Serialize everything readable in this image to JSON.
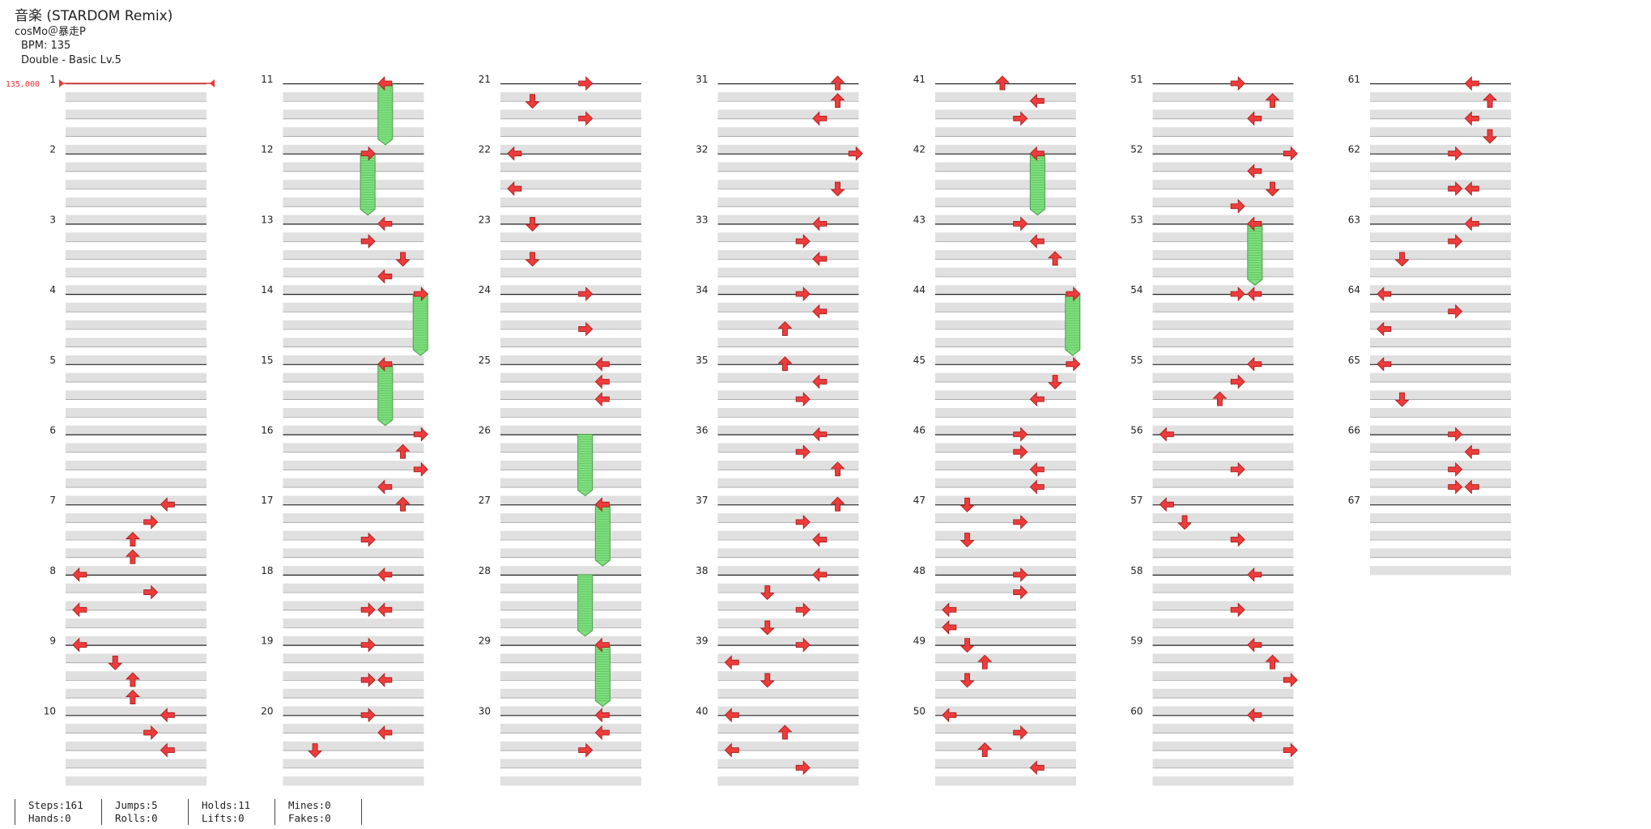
{
  "song": {
    "title": "音楽 (STARDOM Remix)",
    "artist": "cosMo＠暴走P",
    "bpm_label": "BPM: 135",
    "difficulty_label": "Double - Basic Lv.5",
    "bpm_marker": "135.000"
  },
  "measure_numbers": [
    "1",
    "2",
    "3",
    "4",
    "5",
    "6",
    "7",
    "8",
    "9",
    "10",
    "11",
    "12",
    "13",
    "14",
    "15",
    "16",
    "17",
    "18",
    "19",
    "20",
    "21",
    "22",
    "23",
    "24",
    "25",
    "26",
    "27",
    "28",
    "29",
    "30",
    "31",
    "32",
    "33",
    "34",
    "35",
    "36",
    "37",
    "38",
    "39",
    "40",
    "41",
    "42",
    "43",
    "44",
    "45",
    "46",
    "47",
    "48",
    "49",
    "50",
    "51",
    "52",
    "53",
    "54",
    "55",
    "56",
    "57",
    "58",
    "59",
    "60",
    "61",
    "62",
    "63",
    "64",
    "65",
    "66",
    "67"
  ],
  "colors": {
    "arrow": "#ee3b3b",
    "hold": "#7ee07e",
    "band": "#e0e0e0"
  },
  "notes": [
    {
      "m": 7,
      "b": 0,
      "l": 5,
      "d": "left"
    },
    {
      "m": 7,
      "b": 1,
      "l": 4,
      "d": "right"
    },
    {
      "m": 7,
      "b": 2,
      "l": 3,
      "d": "up"
    },
    {
      "m": 7,
      "b": 3,
      "l": 3,
      "d": "up"
    },
    {
      "m": 8,
      "b": 0,
      "l": 0,
      "d": "left"
    },
    {
      "m": 8,
      "b": 1,
      "l": 4,
      "d": "right"
    },
    {
      "m": 8,
      "b": 2,
      "l": 0,
      "d": "left"
    },
    {
      "m": 9,
      "b": 0,
      "l": 0,
      "d": "left"
    },
    {
      "m": 9,
      "b": 1,
      "l": 2,
      "d": "down"
    },
    {
      "m": 9,
      "b": 2,
      "l": 3,
      "d": "up"
    },
    {
      "m": 9,
      "b": 3,
      "l": 3,
      "d": "up"
    },
    {
      "m": 10,
      "b": 0,
      "l": 5,
      "d": "left"
    },
    {
      "m": 10,
      "b": 1,
      "l": 4,
      "d": "right"
    },
    {
      "m": 10,
      "b": 2,
      "l": 5,
      "d": "left"
    },
    {
      "m": 11,
      "b": 0,
      "l": 5,
      "d": "left"
    },
    {
      "m": 12,
      "b": 0,
      "l": 4,
      "d": "right"
    },
    {
      "m": 13,
      "b": 0,
      "l": 5,
      "d": "left"
    },
    {
      "m": 13,
      "b": 1,
      "l": 4,
      "d": "right"
    },
    {
      "m": 13,
      "b": 2,
      "l": 6,
      "d": "down"
    },
    {
      "m": 13,
      "b": 3,
      "l": 5,
      "d": "left"
    },
    {
      "m": 14,
      "b": 0,
      "l": 7,
      "d": "right"
    },
    {
      "m": 15,
      "b": 0,
      "l": 5,
      "d": "left"
    },
    {
      "m": 16,
      "b": 0,
      "l": 7,
      "d": "right"
    },
    {
      "m": 16,
      "b": 1,
      "l": 6,
      "d": "up"
    },
    {
      "m": 16,
      "b": 2,
      "l": 7,
      "d": "right"
    },
    {
      "m": 16,
      "b": 3,
      "l": 5,
      "d": "left"
    },
    {
      "m": 17,
      "b": 0,
      "l": 6,
      "d": "up"
    },
    {
      "m": 17,
      "b": 2,
      "l": 4,
      "d": "right"
    },
    {
      "m": 18,
      "b": 0,
      "l": 5,
      "d": "left"
    },
    {
      "m": 18,
      "b": 2,
      "l": 4,
      "d": "right"
    },
    {
      "m": 18,
      "b": 2,
      "l": 5,
      "d": "left"
    },
    {
      "m": 19,
      "b": 0,
      "l": 4,
      "d": "right"
    },
    {
      "m": 19,
      "b": 2,
      "l": 4,
      "d": "right"
    },
    {
      "m": 19,
      "b": 2,
      "l": 5,
      "d": "left"
    },
    {
      "m": 20,
      "b": 0,
      "l": 4,
      "d": "right"
    },
    {
      "m": 20,
      "b": 1,
      "l": 5,
      "d": "left"
    },
    {
      "m": 20,
      "b": 2,
      "l": 1,
      "d": "down"
    },
    {
      "m": 21,
      "b": 0,
      "l": 4,
      "d": "right"
    },
    {
      "m": 21,
      "b": 1,
      "l": 1,
      "d": "down"
    },
    {
      "m": 21,
      "b": 2,
      "l": 4,
      "d": "right"
    },
    {
      "m": 22,
      "b": 0,
      "l": 0,
      "d": "left"
    },
    {
      "m": 22,
      "b": 2,
      "l": 0,
      "d": "left"
    },
    {
      "m": 23,
      "b": 0,
      "l": 1,
      "d": "down"
    },
    {
      "m": 23,
      "b": 2,
      "l": 1,
      "d": "down"
    },
    {
      "m": 24,
      "b": 0,
      "l": 4,
      "d": "right"
    },
    {
      "m": 24,
      "b": 2,
      "l": 4,
      "d": "right"
    },
    {
      "m": 25,
      "b": 0,
      "l": 5,
      "d": "left"
    },
    {
      "m": 25,
      "b": 1,
      "l": 5,
      "d": "left"
    },
    {
      "m": 25,
      "b": 2,
      "l": 5,
      "d": "left"
    },
    {
      "m": 27,
      "b": 0,
      "l": 5,
      "d": "left"
    },
    {
      "m": 29,
      "b": 0,
      "l": 5,
      "d": "left"
    },
    {
      "m": 30,
      "b": 0,
      "l": 5,
      "d": "left"
    },
    {
      "m": 30,
      "b": 1,
      "l": 5,
      "d": "left"
    },
    {
      "m": 30,
      "b": 2,
      "l": 4,
      "d": "right"
    },
    {
      "m": 31,
      "b": 0,
      "l": 6,
      "d": "up"
    },
    {
      "m": 31,
      "b": 1,
      "l": 6,
      "d": "up"
    },
    {
      "m": 31,
      "b": 2,
      "l": 5,
      "d": "left"
    },
    {
      "m": 32,
      "b": 0,
      "l": 7,
      "d": "right"
    },
    {
      "m": 32,
      "b": 2,
      "l": 6,
      "d": "down"
    },
    {
      "m": 33,
      "b": 0,
      "l": 5,
      "d": "left"
    },
    {
      "m": 33,
      "b": 1,
      "l": 4,
      "d": "right"
    },
    {
      "m": 33,
      "b": 2,
      "l": 5,
      "d": "left"
    },
    {
      "m": 34,
      "b": 0,
      "l": 4,
      "d": "right"
    },
    {
      "m": 34,
      "b": 1,
      "l": 5,
      "d": "left"
    },
    {
      "m": 34,
      "b": 2,
      "l": 3,
      "d": "up"
    },
    {
      "m": 35,
      "b": 0,
      "l": 3,
      "d": "up"
    },
    {
      "m": 35,
      "b": 1,
      "l": 5,
      "d": "left"
    },
    {
      "m": 35,
      "b": 2,
      "l": 4,
      "d": "right"
    },
    {
      "m": 36,
      "b": 0,
      "l": 5,
      "d": "left"
    },
    {
      "m": 36,
      "b": 1,
      "l": 4,
      "d": "right"
    },
    {
      "m": 36,
      "b": 2,
      "l": 6,
      "d": "up"
    },
    {
      "m": 37,
      "b": 0,
      "l": 6,
      "d": "up"
    },
    {
      "m": 37,
      "b": 1,
      "l": 4,
      "d": "right"
    },
    {
      "m": 37,
      "b": 2,
      "l": 5,
      "d": "left"
    },
    {
      "m": 38,
      "b": 0,
      "l": 5,
      "d": "left"
    },
    {
      "m": 38,
      "b": 1,
      "l": 2,
      "d": "down"
    },
    {
      "m": 38,
      "b": 2,
      "l": 4,
      "d": "right"
    },
    {
      "m": 38,
      "b": 3,
      "l": 2,
      "d": "down"
    },
    {
      "m": 39,
      "b": 0,
      "l": 4,
      "d": "right"
    },
    {
      "m": 39,
      "b": 1,
      "l": 0,
      "d": "left"
    },
    {
      "m": 39,
      "b": 2,
      "l": 2,
      "d": "down"
    },
    {
      "m": 40,
      "b": 0,
      "l": 0,
      "d": "left"
    },
    {
      "m": 40,
      "b": 1,
      "l": 3,
      "d": "up"
    },
    {
      "m": 40,
      "b": 2,
      "l": 0,
      "d": "left"
    },
    {
      "m": 40,
      "b": 3,
      "l": 4,
      "d": "right"
    },
    {
      "m": 41,
      "b": 0,
      "l": 3,
      "d": "up"
    },
    {
      "m": 41,
      "b": 1,
      "l": 5,
      "d": "left"
    },
    {
      "m": 41,
      "b": 2,
      "l": 4,
      "d": "right"
    },
    {
      "m": 42,
      "b": 0,
      "l": 5,
      "d": "left"
    },
    {
      "m": 43,
      "b": 0,
      "l": 4,
      "d": "right"
    },
    {
      "m": 43,
      "b": 1,
      "l": 5,
      "d": "left"
    },
    {
      "m": 43,
      "b": 2,
      "l": 6,
      "d": "up"
    },
    {
      "m": 44,
      "b": 0,
      "l": 7,
      "d": "right"
    },
    {
      "m": 45,
      "b": 0,
      "l": 7,
      "d": "right"
    },
    {
      "m": 45,
      "b": 1,
      "l": 6,
      "d": "down"
    },
    {
      "m": 45,
      "b": 2,
      "l": 5,
      "d": "left"
    },
    {
      "m": 46,
      "b": 0,
      "l": 4,
      "d": "right"
    },
    {
      "m": 46,
      "b": 1,
      "l": 4,
      "d": "right"
    },
    {
      "m": 46,
      "b": 2,
      "l": 5,
      "d": "left"
    },
    {
      "m": 46,
      "b": 3,
      "l": 5,
      "d": "left"
    },
    {
      "m": 47,
      "b": 0,
      "l": 1,
      "d": "down"
    },
    {
      "m": 47,
      "b": 1,
      "l": 4,
      "d": "right"
    },
    {
      "m": 47,
      "b": 2,
      "l": 1,
      "d": "down"
    },
    {
      "m": 48,
      "b": 0,
      "l": 4,
      "d": "right"
    },
    {
      "m": 48,
      "b": 1,
      "l": 4,
      "d": "right"
    },
    {
      "m": 48,
      "b": 2,
      "l": 0,
      "d": "left"
    },
    {
      "m": 48,
      "b": 3,
      "l": 0,
      "d": "left"
    },
    {
      "m": 49,
      "b": 0,
      "l": 1,
      "d": "down"
    },
    {
      "m": 49,
      "b": 1,
      "l": 2,
      "d": "up"
    },
    {
      "m": 49,
      "b": 2,
      "l": 1,
      "d": "down"
    },
    {
      "m": 50,
      "b": 0,
      "l": 0,
      "d": "left"
    },
    {
      "m": 50,
      "b": 1,
      "l": 4,
      "d": "right"
    },
    {
      "m": 50,
      "b": 2,
      "l": 2,
      "d": "up"
    },
    {
      "m": 50,
      "b": 3,
      "l": 5,
      "d": "left"
    },
    {
      "m": 51,
      "b": 0,
      "l": 4,
      "d": "right"
    },
    {
      "m": 51,
      "b": 1,
      "l": 6,
      "d": "up"
    },
    {
      "m": 51,
      "b": 2,
      "l": 5,
      "d": "left"
    },
    {
      "m": 52,
      "b": 0,
      "l": 7,
      "d": "right"
    },
    {
      "m": 52,
      "b": 1,
      "l": 5,
      "d": "left"
    },
    {
      "m": 52,
      "b": 2,
      "l": 6,
      "d": "down"
    },
    {
      "m": 52,
      "b": 3,
      "l": 4,
      "d": "right"
    },
    {
      "m": 53,
      "b": 0,
      "l": 5,
      "d": "left"
    },
    {
      "m": 54,
      "b": 0,
      "l": 4,
      "d": "right"
    },
    {
      "m": 54,
      "b": 0,
      "l": 5,
      "d": "left"
    },
    {
      "m": 55,
      "b": 0,
      "l": 5,
      "d": "left"
    },
    {
      "m": 55,
      "b": 1,
      "l": 4,
      "d": "right"
    },
    {
      "m": 55,
      "b": 2,
      "l": 3,
      "d": "up"
    },
    {
      "m": 56,
      "b": 0,
      "l": 0,
      "d": "left"
    },
    {
      "m": 56,
      "b": 2,
      "l": 4,
      "d": "right"
    },
    {
      "m": 57,
      "b": 0,
      "l": 0,
      "d": "left"
    },
    {
      "m": 57,
      "b": 1,
      "l": 1,
      "d": "down"
    },
    {
      "m": 57,
      "b": 2,
      "l": 4,
      "d": "right"
    },
    {
      "m": 58,
      "b": 0,
      "l": 5,
      "d": "left"
    },
    {
      "m": 58,
      "b": 2,
      "l": 4,
      "d": "right"
    },
    {
      "m": 59,
      "b": 0,
      "l": 5,
      "d": "left"
    },
    {
      "m": 59,
      "b": 1,
      "l": 6,
      "d": "up"
    },
    {
      "m": 59,
      "b": 2,
      "l": 7,
      "d": "right"
    },
    {
      "m": 60,
      "b": 0,
      "l": 5,
      "d": "left"
    },
    {
      "m": 60,
      "b": 2,
      "l": 7,
      "d": "right"
    },
    {
      "m": 61,
      "b": 0,
      "l": 5,
      "d": "left"
    },
    {
      "m": 61,
      "b": 1,
      "l": 6,
      "d": "up"
    },
    {
      "m": 61,
      "b": 2,
      "l": 5,
      "d": "left"
    },
    {
      "m": 61,
      "b": 3,
      "l": 6,
      "d": "down"
    },
    {
      "m": 62,
      "b": 0,
      "l": 4,
      "d": "right"
    },
    {
      "m": 62,
      "b": 2,
      "l": 4,
      "d": "right"
    },
    {
      "m": 62,
      "b": 2,
      "l": 5,
      "d": "left"
    },
    {
      "m": 63,
      "b": 0,
      "l": 5,
      "d": "left"
    },
    {
      "m": 63,
      "b": 1,
      "l": 4,
      "d": "right"
    },
    {
      "m": 63,
      "b": 2,
      "l": 1,
      "d": "down"
    },
    {
      "m": 64,
      "b": 0,
      "l": 0,
      "d": "left"
    },
    {
      "m": 64,
      "b": 1,
      "l": 4,
      "d": "right"
    },
    {
      "m": 64,
      "b": 2,
      "l": 0,
      "d": "left"
    },
    {
      "m": 65,
      "b": 0,
      "l": 0,
      "d": "left"
    },
    {
      "m": 65,
      "b": 2,
      "l": 1,
      "d": "down"
    },
    {
      "m": 66,
      "b": 0,
      "l": 4,
      "d": "right"
    },
    {
      "m": 66,
      "b": 1,
      "l": 5,
      "d": "left"
    },
    {
      "m": 66,
      "b": 2,
      "l": 4,
      "d": "right"
    },
    {
      "m": 66,
      "b": 3,
      "l": 4,
      "d": "right"
    },
    {
      "m": 66,
      "b": 3,
      "l": 5,
      "d": "left"
    }
  ],
  "holds": [
    {
      "m": 11,
      "b": 0,
      "l": 5,
      "len": 3.5
    },
    {
      "m": 12,
      "b": 0,
      "l": 4,
      "len": 3.5
    },
    {
      "m": 14,
      "b": 0,
      "l": 7,
      "len": 3.5
    },
    {
      "m": 15,
      "b": 0,
      "l": 5,
      "len": 3.5
    },
    {
      "m": 26,
      "b": 0,
      "l": 4,
      "len": 3.5
    },
    {
      "m": 27,
      "b": 0,
      "l": 5,
      "len": 3.5
    },
    {
      "m": 28,
      "b": 0,
      "l": 4,
      "len": 3.5
    },
    {
      "m": 29,
      "b": 0,
      "l": 5,
      "len": 3.5
    },
    {
      "m": 42,
      "b": 0,
      "l": 5,
      "len": 3.5
    },
    {
      "m": 44,
      "b": 0,
      "l": 7,
      "len": 3.5
    },
    {
      "m": 53,
      "b": 0,
      "l": 5,
      "len": 3.5
    }
  ],
  "stats": [
    {
      "a": "Steps:161",
      "b": "Hands:0"
    },
    {
      "a": "Jumps:5",
      "b": "Rolls:0"
    },
    {
      "a": "Holds:11",
      "b": "Lifts:0"
    },
    {
      "a": "Mines:0",
      "b": "Fakes:0"
    },
    {
      "a": "",
      "b": ""
    }
  ]
}
